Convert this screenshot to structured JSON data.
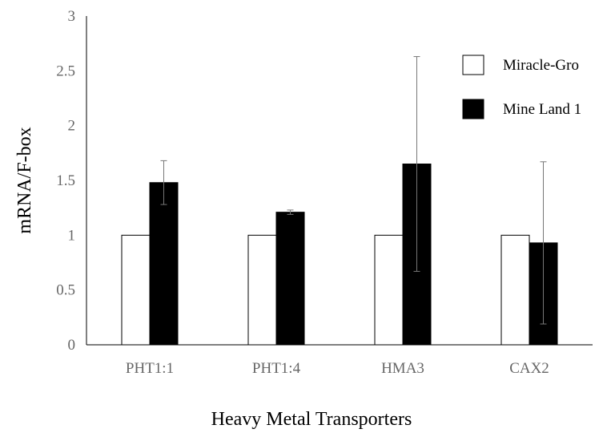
{
  "chart_data": {
    "type": "bar",
    "title": "",
    "xlabel": "Heavy Metal Transporters",
    "ylabel": "mRNA/F-box",
    "ylim": [
      0,
      3
    ],
    "yticks": [
      "0",
      "0.5",
      "1",
      "1.5",
      "2",
      "2.5",
      "3"
    ],
    "categories": [
      "PHT1:1",
      "PHT1:4",
      "HMA3",
      "CAX2"
    ],
    "series": [
      {
        "name": "Miracle-Gro",
        "color": "#ffffff",
        "values": [
          1.0,
          1.0,
          1.0,
          1.0
        ],
        "error": [
          0,
          0,
          0,
          0
        ]
      },
      {
        "name": "Mine Land 1",
        "color": "#000000",
        "values": [
          1.48,
          1.21,
          1.65,
          0.93
        ],
        "error": [
          0.2,
          0.02,
          0.98,
          0.74
        ]
      }
    ],
    "grid": false,
    "legend_position": "top-right"
  }
}
